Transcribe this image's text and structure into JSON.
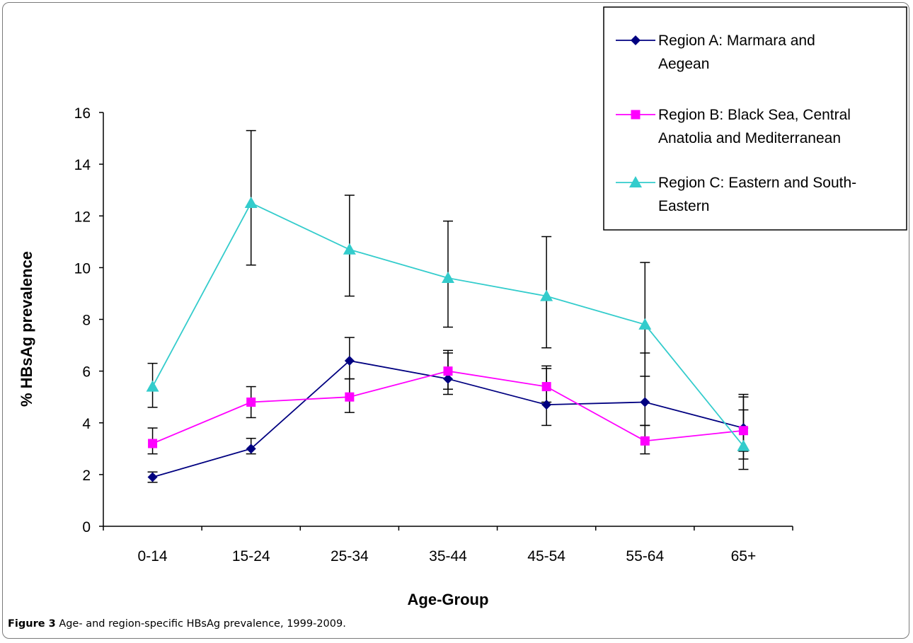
{
  "caption": {
    "figure_label": "Figure 3",
    "text": "Age- and region-specific HBsAg prevalence, 1999-2009",
    "trailing": "."
  },
  "chart_data": {
    "type": "line",
    "title": "",
    "xlabel": "Age-Group",
    "ylabel": "% HBsAg prevalence",
    "categories": [
      "0-14",
      "15-24",
      "25-34",
      "35-44",
      "45-54",
      "55-64",
      "65+"
    ],
    "ylim": [
      0,
      16
    ],
    "yticks": [
      0,
      2,
      4,
      6,
      8,
      10,
      12,
      14,
      16
    ],
    "grid": false,
    "legend_position": "top-right",
    "series": [
      {
        "name": "Region A: Marmara and Aegean",
        "legend_lines": [
          "Region A: Marmara and",
          "Aegean"
        ],
        "color": "#000080",
        "marker": "diamond",
        "values": [
          1.9,
          3.0,
          6.4,
          5.7,
          4.7,
          4.8,
          3.8
        ],
        "error_low": [
          1.7,
          2.8,
          5.7,
          5.1,
          3.9,
          3.9,
          2.6
        ],
        "error_high": [
          2.1,
          3.4,
          7.3,
          6.7,
          6.2,
          6.7,
          5.0
        ]
      },
      {
        "name": "Region B: Black Sea, Central Anatolia and Mediterranean",
        "legend_lines": [
          "Region B: Black Sea, Central",
          "Anatolia and Mediterranean"
        ],
        "color": "#ff00ff",
        "marker": "square",
        "values": [
          3.2,
          4.8,
          5.0,
          6.0,
          5.4,
          3.3,
          3.7
        ],
        "error_low": [
          2.8,
          4.2,
          4.4,
          5.3,
          4.8,
          2.8,
          2.9
        ],
        "error_high": [
          3.8,
          5.4,
          5.7,
          6.8,
          6.1,
          3.9,
          4.5
        ]
      },
      {
        "name": "Region C: Eastern and South-Eastern",
        "legend_lines": [
          "Region C: Eastern and South-",
          "Eastern"
        ],
        "color": "#33cccc",
        "marker": "triangle",
        "values": [
          5.4,
          12.5,
          10.7,
          9.6,
          8.9,
          7.8,
          3.1
        ],
        "error_low": [
          4.6,
          10.1,
          8.9,
          7.7,
          6.9,
          5.8,
          2.2
        ],
        "error_high": [
          6.3,
          15.3,
          12.8,
          11.8,
          11.2,
          10.2,
          5.1
        ]
      }
    ]
  }
}
